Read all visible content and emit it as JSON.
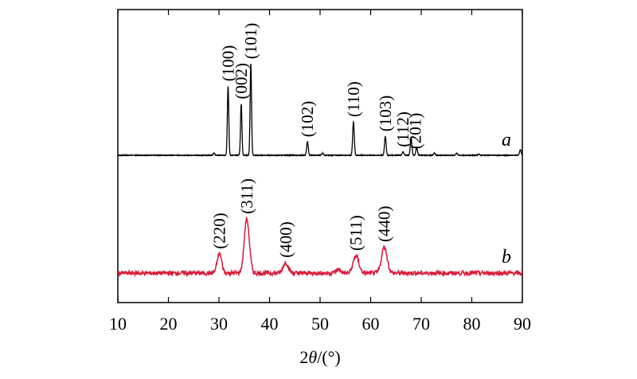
{
  "chart_data": {
    "type": "line",
    "xlabel_prefix": "2",
    "xlabel_symbol": "θ",
    "xlabel_suffix": "/(°)",
    "ylabel": "",
    "xlim": [
      10,
      90
    ],
    "xticks": [
      10,
      20,
      30,
      40,
      50,
      60,
      70,
      80,
      90
    ],
    "tick_labels": [
      "10",
      "20",
      "30",
      "40",
      "50",
      "60",
      "70",
      "80",
      "90"
    ],
    "yticks": "none",
    "grid": false,
    "legend": "none",
    "series": [
      {
        "name": "a",
        "color": "#000000",
        "baseline": 0.0,
        "noise": 0.003,
        "peaks": [
          {
            "x": 29.0,
            "h": 0.02,
            "w": 0.15
          },
          {
            "x": 31.8,
            "h": 0.62,
            "w": 0.14
          },
          {
            "x": 34.4,
            "h": 0.46,
            "w": 0.14
          },
          {
            "x": 36.3,
            "h": 0.82,
            "w": 0.14
          },
          {
            "x": 47.5,
            "h": 0.12,
            "w": 0.16
          },
          {
            "x": 50.5,
            "h": 0.02,
            "w": 0.16
          },
          {
            "x": 56.6,
            "h": 0.3,
            "w": 0.16
          },
          {
            "x": 62.9,
            "h": 0.17,
            "w": 0.16
          },
          {
            "x": 66.4,
            "h": 0.03,
            "w": 0.16
          },
          {
            "x": 68.0,
            "h": 0.15,
            "w": 0.16
          },
          {
            "x": 69.1,
            "h": 0.07,
            "w": 0.16
          },
          {
            "x": 72.6,
            "h": 0.02,
            "w": 0.16
          },
          {
            "x": 77.0,
            "h": 0.02,
            "w": 0.16
          },
          {
            "x": 81.4,
            "h": 0.01,
            "w": 0.16
          },
          {
            "x": 89.6,
            "h": 0.05,
            "w": 0.16
          }
        ],
        "labels": [
          {
            "text": "(100)",
            "x": 31.8
          },
          {
            "text": "(002)",
            "x": 34.4
          },
          {
            "text": "(101)",
            "x": 36.3
          },
          {
            "text": "(102)",
            "x": 47.5
          },
          {
            "text": "(110)",
            "x": 56.6
          },
          {
            "text": "(103)",
            "x": 62.9
          },
          {
            "text": "(112)",
            "x": 66.4
          },
          {
            "text": "(201)",
            "x": 68.8
          }
        ],
        "letter": "a"
      },
      {
        "name": "b",
        "color": "#d81b3b",
        "baseline": 0.0,
        "noise": 0.025,
        "peaks": [
          {
            "x": 30.1,
            "h": 0.22,
            "w": 0.45
          },
          {
            "x": 35.5,
            "h": 0.62,
            "w": 0.5
          },
          {
            "x": 43.2,
            "h": 0.12,
            "w": 0.5
          },
          {
            "x": 53.6,
            "h": 0.04,
            "w": 0.5
          },
          {
            "x": 57.1,
            "h": 0.2,
            "w": 0.55
          },
          {
            "x": 62.7,
            "h": 0.3,
            "w": 0.55
          }
        ],
        "labels": [
          {
            "text": "(220)",
            "x": 30.1
          },
          {
            "text": "(311)",
            "x": 35.5
          },
          {
            "text": "(400)",
            "x": 43.2
          },
          {
            "text": "(511)",
            "x": 57.1
          },
          {
            "text": "(440)",
            "x": 62.7
          }
        ],
        "letter": "b"
      }
    ]
  }
}
